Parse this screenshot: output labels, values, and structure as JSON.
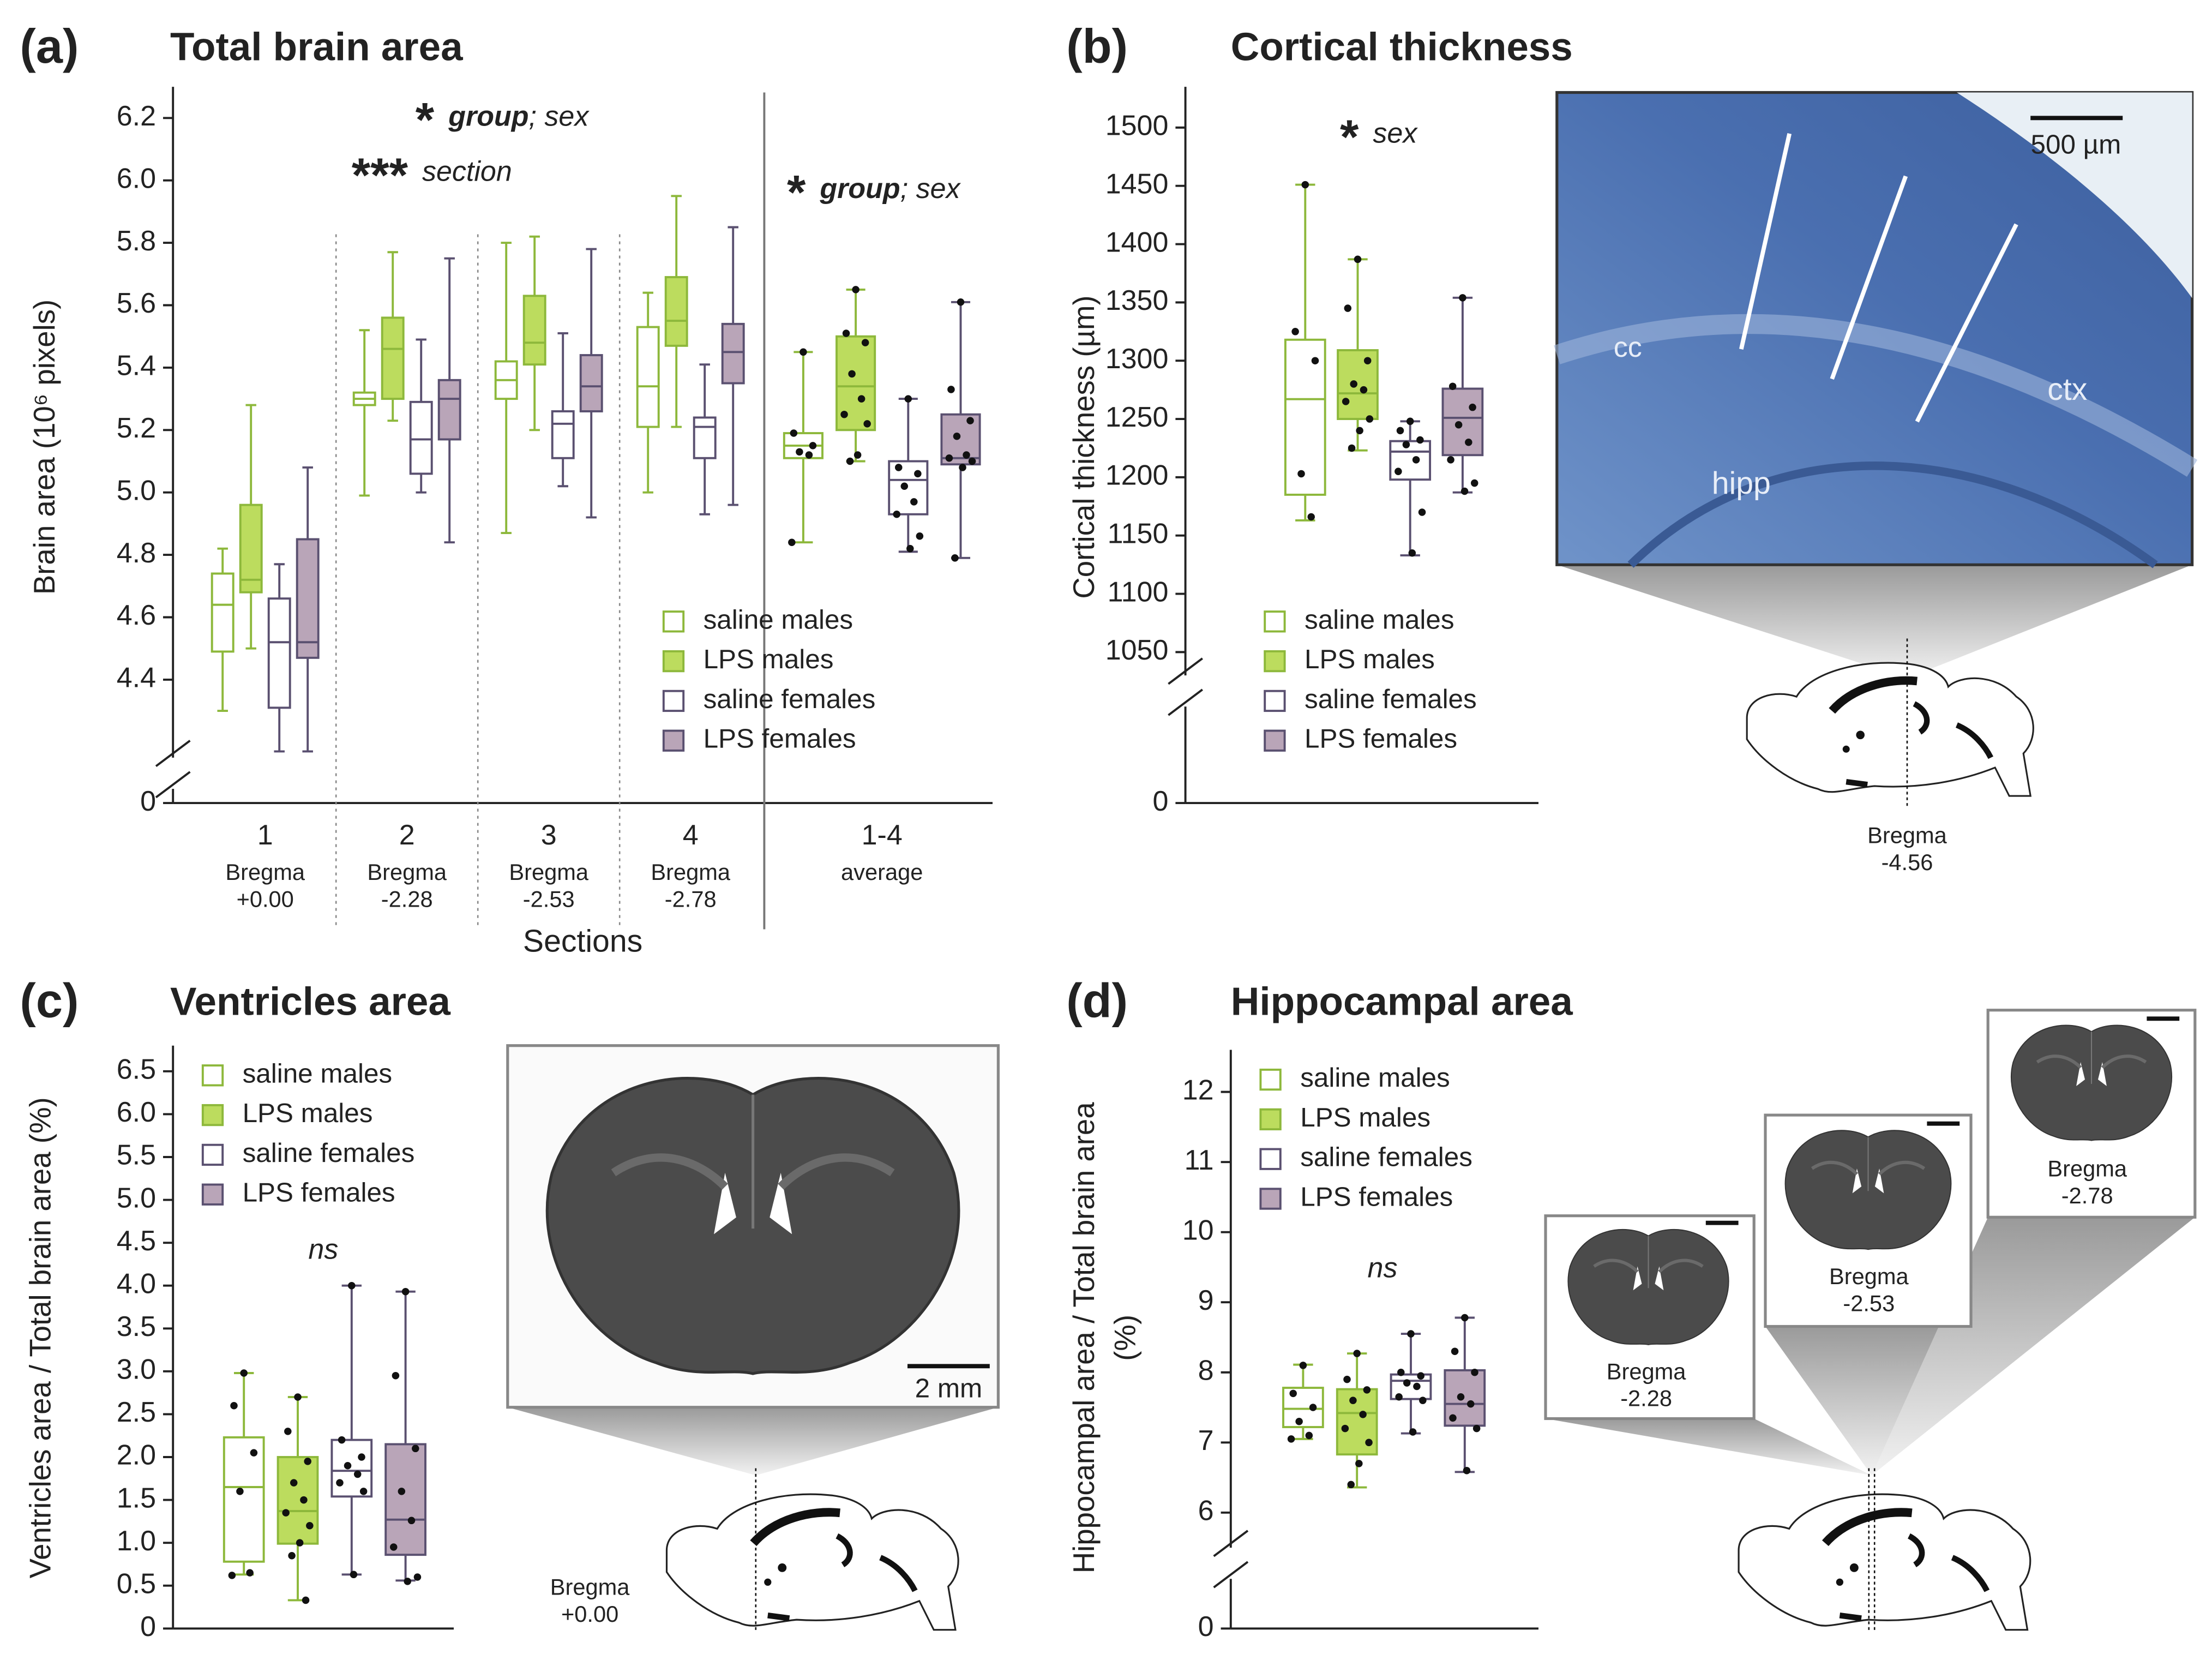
{
  "chart_data": [
    {
      "type": "box",
      "panel_label": "(a)",
      "title": "Total brain area",
      "ylabel": "Brain area (10⁶ pixels)",
      "xlabel": "Sections",
      "categories": [
        "1",
        "2",
        "3",
        "4",
        "1-4"
      ],
      "category_sublabels": [
        [
          "Bregma",
          "+0.00"
        ],
        [
          "Bregma",
          "-2.28"
        ],
        [
          "Bregma",
          "-2.53"
        ],
        [
          "Bregma",
          "-2.78"
        ],
        [
          "average"
        ]
      ],
      "ylim": [
        4.15,
        6.3
      ],
      "axis_break": true,
      "yticks": [
        0,
        4.4,
        4.6,
        4.8,
        {
          "value": 5,
          "label": "5.0"
        },
        5.2,
        5.4,
        5.6,
        5.8,
        {
          "value": 6,
          "label": "6.0"
        },
        6.2
      ],
      "legend": "lower right",
      "annotations": [
        {
          "stars": "*",
          "bold": "group",
          "rest": "; sex"
        },
        {
          "stars": "***",
          "rest": "section"
        },
        {
          "stars": "*",
          "bold": "group",
          "rest": "; sex"
        }
      ],
      "series": [
        {
          "name": "saline males",
          "color": "#8db83b",
          "fill": "#ffffff",
          "values": [
            {
              "min": 4.3,
              "q1": 4.49,
              "median": 4.64,
              "q3": 4.74,
              "max": 4.82
            },
            {
              "min": 4.99,
              "q1": 5.28,
              "median": 5.3,
              "q3": 5.32,
              "max": 5.52
            },
            {
              "min": 4.87,
              "q1": 5.3,
              "median": 5.36,
              "q3": 5.42,
              "max": 5.8
            },
            {
              "min": 5.0,
              "q1": 5.21,
              "median": 5.34,
              "q3": 5.53,
              "max": 5.64
            },
            {
              "min": 4.84,
              "q1": 5.11,
              "median": 5.15,
              "q3": 5.19,
              "max": 5.45,
              "points": [
                5.45,
                5.19,
                5.15,
                5.13,
                5.12,
                4.84
              ]
            }
          ]
        },
        {
          "name": "LPS males",
          "color": "#8db83b",
          "fill": "#bcdc5e",
          "values": [
            {
              "min": 4.5,
              "q1": 4.68,
              "median": 4.72,
              "q3": 4.96,
              "max": 5.28
            },
            {
              "min": 5.23,
              "q1": 5.3,
              "median": 5.46,
              "q3": 5.56,
              "max": 5.77
            },
            {
              "min": 5.2,
              "q1": 5.41,
              "median": 5.48,
              "q3": 5.63,
              "max": 5.82
            },
            {
              "min": 5.21,
              "q1": 5.47,
              "median": 5.55,
              "q3": 5.69,
              "max": 5.95
            },
            {
              "min": 5.1,
              "q1": 5.2,
              "median": 5.34,
              "q3": 5.5,
              "max": 5.65,
              "points": [
                5.65,
                5.51,
                5.48,
                5.38,
                5.3,
                5.25,
                5.22,
                5.12,
                5.1
              ]
            }
          ]
        },
        {
          "name": "saline females",
          "color": "#5a5070",
          "fill": "#ffffff",
          "values": [
            {
              "min": 4.17,
              "q1": 4.31,
              "median": 4.52,
              "q3": 4.66,
              "max": 4.77
            },
            {
              "min": 5.0,
              "q1": 5.06,
              "median": 5.17,
              "q3": 5.29,
              "max": 5.49
            },
            {
              "min": 5.02,
              "q1": 5.11,
              "median": 5.22,
              "q3": 5.26,
              "max": 5.51
            },
            {
              "min": 4.93,
              "q1": 5.11,
              "median": 5.21,
              "q3": 5.24,
              "max": 5.41
            },
            {
              "min": 4.81,
              "q1": 4.93,
              "median": 5.04,
              "q3": 5.1,
              "max": 5.3,
              "points": [
                5.3,
                5.08,
                5.06,
                5.02,
                4.97,
                4.93,
                4.86,
                4.82
              ]
            }
          ]
        },
        {
          "name": "LPS females",
          "color": "#5a5070",
          "fill": "#b9a5b8",
          "values": [
            {
              "min": 4.17,
              "q1": 4.47,
              "median": 4.52,
              "q3": 4.85,
              "max": 5.08
            },
            {
              "min": 4.84,
              "q1": 5.17,
              "median": 5.3,
              "q3": 5.36,
              "max": 5.75
            },
            {
              "min": 4.92,
              "q1": 5.26,
              "median": 5.34,
              "q3": 5.44,
              "max": 5.78
            },
            {
              "min": 4.96,
              "q1": 5.35,
              "median": 5.45,
              "q3": 5.54,
              "max": 5.85
            },
            {
              "min": 4.79,
              "q1": 5.09,
              "median": 5.11,
              "q3": 5.25,
              "max": 5.61,
              "points": [
                5.61,
                5.33,
                5.23,
                5.18,
                5.12,
                5.11,
                5.1,
                5.08,
                4.79
              ]
            }
          ]
        }
      ]
    },
    {
      "type": "box",
      "panel_label": "(b)",
      "title": "Cortical thickness",
      "ylabel": "Cortical thickness (µm)",
      "categories": [
        null
      ],
      "ylim": [
        1030,
        1535
      ],
      "axis_break": true,
      "yticks": [
        0,
        1050,
        1100,
        1150,
        1200,
        1250,
        1300,
        1350,
        1400,
        1450,
        1500
      ],
      "legend": "lower left",
      "annotations": [
        {
          "stars": "*",
          "rest": "sex"
        }
      ],
      "series": [
        {
          "name": "saline males",
          "color": "#8db83b",
          "fill": "#ffffff",
          "values": [
            {
              "min": 1163,
              "q1": 1185,
              "median": 1267,
              "q3": 1318,
              "max": 1451,
              "points": [
                1451,
                1325,
                1300,
                1203,
                1166
              ]
            }
          ]
        },
        {
          "name": "LPS males",
          "color": "#8db83b",
          "fill": "#bcdc5e",
          "values": [
            {
              "min": 1223,
              "q1": 1250,
              "median": 1272,
              "q3": 1309,
              "max": 1387,
              "points": [
                1387,
                1345,
                1300,
                1280,
                1275,
                1265,
                1250,
                1240,
                1225
              ]
            }
          ]
        },
        {
          "name": "saline females",
          "color": "#5a5070",
          "fill": "#ffffff",
          "values": [
            {
              "min": 1133,
              "q1": 1198,
              "median": 1222,
              "q3": 1231,
              "max": 1248,
              "points": [
                1248,
                1240,
                1232,
                1228,
                1215,
                1205,
                1170,
                1135
              ]
            }
          ]
        },
        {
          "name": "LPS females",
          "color": "#5a5070",
          "fill": "#b9a5b8",
          "values": [
            {
              "min": 1187,
              "q1": 1219,
              "median": 1251,
              "q3": 1276,
              "max": 1354,
              "points": [
                1354,
                1278,
                1260,
                1245,
                1230,
                1215,
                1195,
                1188
              ]
            }
          ]
        }
      ]
    },
    {
      "type": "box",
      "panel_label": "(c)",
      "title": "Ventricles area",
      "ylabel": "Ventricles area / Total brain area (%)",
      "categories": [
        null
      ],
      "ylim": [
        0,
        6.8
      ],
      "axis_break": false,
      "yticks": [
        0,
        0.5,
        {
          "value": 1,
          "label": "1.0"
        },
        1.5,
        {
          "value": 2,
          "label": "2.0"
        },
        2.5,
        {
          "value": 3,
          "label": "3.0"
        },
        3.5,
        {
          "value": 4,
          "label": "4.0"
        },
        4.5,
        {
          "value": 5,
          "label": "5.0"
        },
        5.5,
        {
          "value": 6,
          "label": "6.0"
        },
        6.5
      ],
      "legend": "upper left",
      "annotations": [
        {
          "rest": "ns"
        }
      ],
      "series": [
        {
          "name": "saline males",
          "color": "#8db83b",
          "fill": "#ffffff",
          "values": [
            {
              "min": 0.63,
              "q1": 0.78,
              "median": 1.65,
              "q3": 2.23,
              "max": 2.98,
              "points": [
                2.98,
                2.6,
                2.05,
                1.6,
                0.65,
                0.62
              ]
            }
          ]
        },
        {
          "name": "LPS males",
          "color": "#8db83b",
          "fill": "#bcdc5e",
          "values": [
            {
              "min": 0.33,
              "q1": 0.99,
              "median": 1.37,
              "q3": 2.0,
              "max": 2.7,
              "points": [
                2.7,
                2.3,
                1.95,
                1.7,
                1.5,
                1.35,
                1.2,
                1.0,
                0.85,
                0.33
              ]
            }
          ]
        },
        {
          "name": "saline females",
          "color": "#5a5070",
          "fill": "#ffffff",
          "values": [
            {
              "min": 0.63,
              "q1": 1.54,
              "median": 1.84,
              "q3": 2.2,
              "max": 4.0,
              "points": [
                4.0,
                2.2,
                2.0,
                1.9,
                1.8,
                1.7,
                1.6,
                0.63
              ]
            }
          ]
        },
        {
          "name": "LPS females",
          "color": "#5a5070",
          "fill": "#b9a5b8",
          "values": [
            {
              "min": 0.56,
              "q1": 0.86,
              "median": 1.27,
              "q3": 2.15,
              "max": 3.93,
              "points": [
                3.93,
                2.95,
                2.1,
                1.6,
                1.26,
                0.95,
                0.6,
                0.55
              ]
            }
          ]
        }
      ]
    },
    {
      "type": "box",
      "panel_label": "(d)",
      "title": "Hippocampal area",
      "ylabel": [
        "Hippocampal area / Total brain area",
        "(%)"
      ],
      "categories": [
        null
      ],
      "ylim": [
        5.5,
        12.6
      ],
      "axis_break": true,
      "yticks": [
        0,
        6,
        7,
        8,
        9,
        10,
        11,
        12
      ],
      "legend": "upper left",
      "annotations": [
        {
          "rest": "ns"
        }
      ],
      "series": [
        {
          "name": "saline males",
          "color": "#8db83b",
          "fill": "#ffffff",
          "values": [
            {
              "min": 7.05,
              "q1": 7.22,
              "median": 7.48,
              "q3": 7.78,
              "max": 8.11,
              "points": [
                8.1,
                7.7,
                7.5,
                7.3,
                7.1,
                7.05
              ]
            }
          ]
        },
        {
          "name": "LPS males",
          "color": "#8db83b",
          "fill": "#bcdc5e",
          "values": [
            {
              "min": 6.36,
              "q1": 6.83,
              "median": 7.42,
              "q3": 7.76,
              "max": 8.27,
              "points": [
                8.27,
                7.9,
                7.75,
                7.6,
                7.4,
                7.2,
                7.0,
                6.7,
                6.4
              ]
            }
          ]
        },
        {
          "name": "saline females",
          "color": "#5a5070",
          "fill": "#ffffff",
          "values": [
            {
              "min": 7.13,
              "q1": 7.62,
              "median": 7.88,
              "q3": 7.97,
              "max": 8.55,
              "points": [
                8.55,
                8.0,
                7.95,
                7.85,
                7.8,
                7.65,
                7.6,
                7.15
              ]
            }
          ]
        },
        {
          "name": "LPS females",
          "color": "#5a5070",
          "fill": "#b9a5b8",
          "values": [
            {
              "min": 6.58,
              "q1": 7.24,
              "median": 7.55,
              "q3": 8.03,
              "max": 8.78,
              "points": [
                8.78,
                8.3,
                8.0,
                7.65,
                7.55,
                7.35,
                7.2,
                6.6
              ]
            }
          ]
        }
      ]
    }
  ],
  "insets": {
    "b": {
      "scale": "500 µm",
      "regions": [
        "cc",
        "hipp",
        "ctx"
      ],
      "bregma": [
        "Bregma",
        "-4.56"
      ]
    },
    "c": {
      "scale": "2 mm",
      "bregma": [
        "Bregma",
        "+0.00"
      ]
    },
    "d": {
      "sections": [
        [
          "Bregma",
          "-2.28"
        ],
        [
          "Bregma",
          "-2.53"
        ],
        [
          "Bregma",
          "-2.78"
        ]
      ]
    }
  }
}
